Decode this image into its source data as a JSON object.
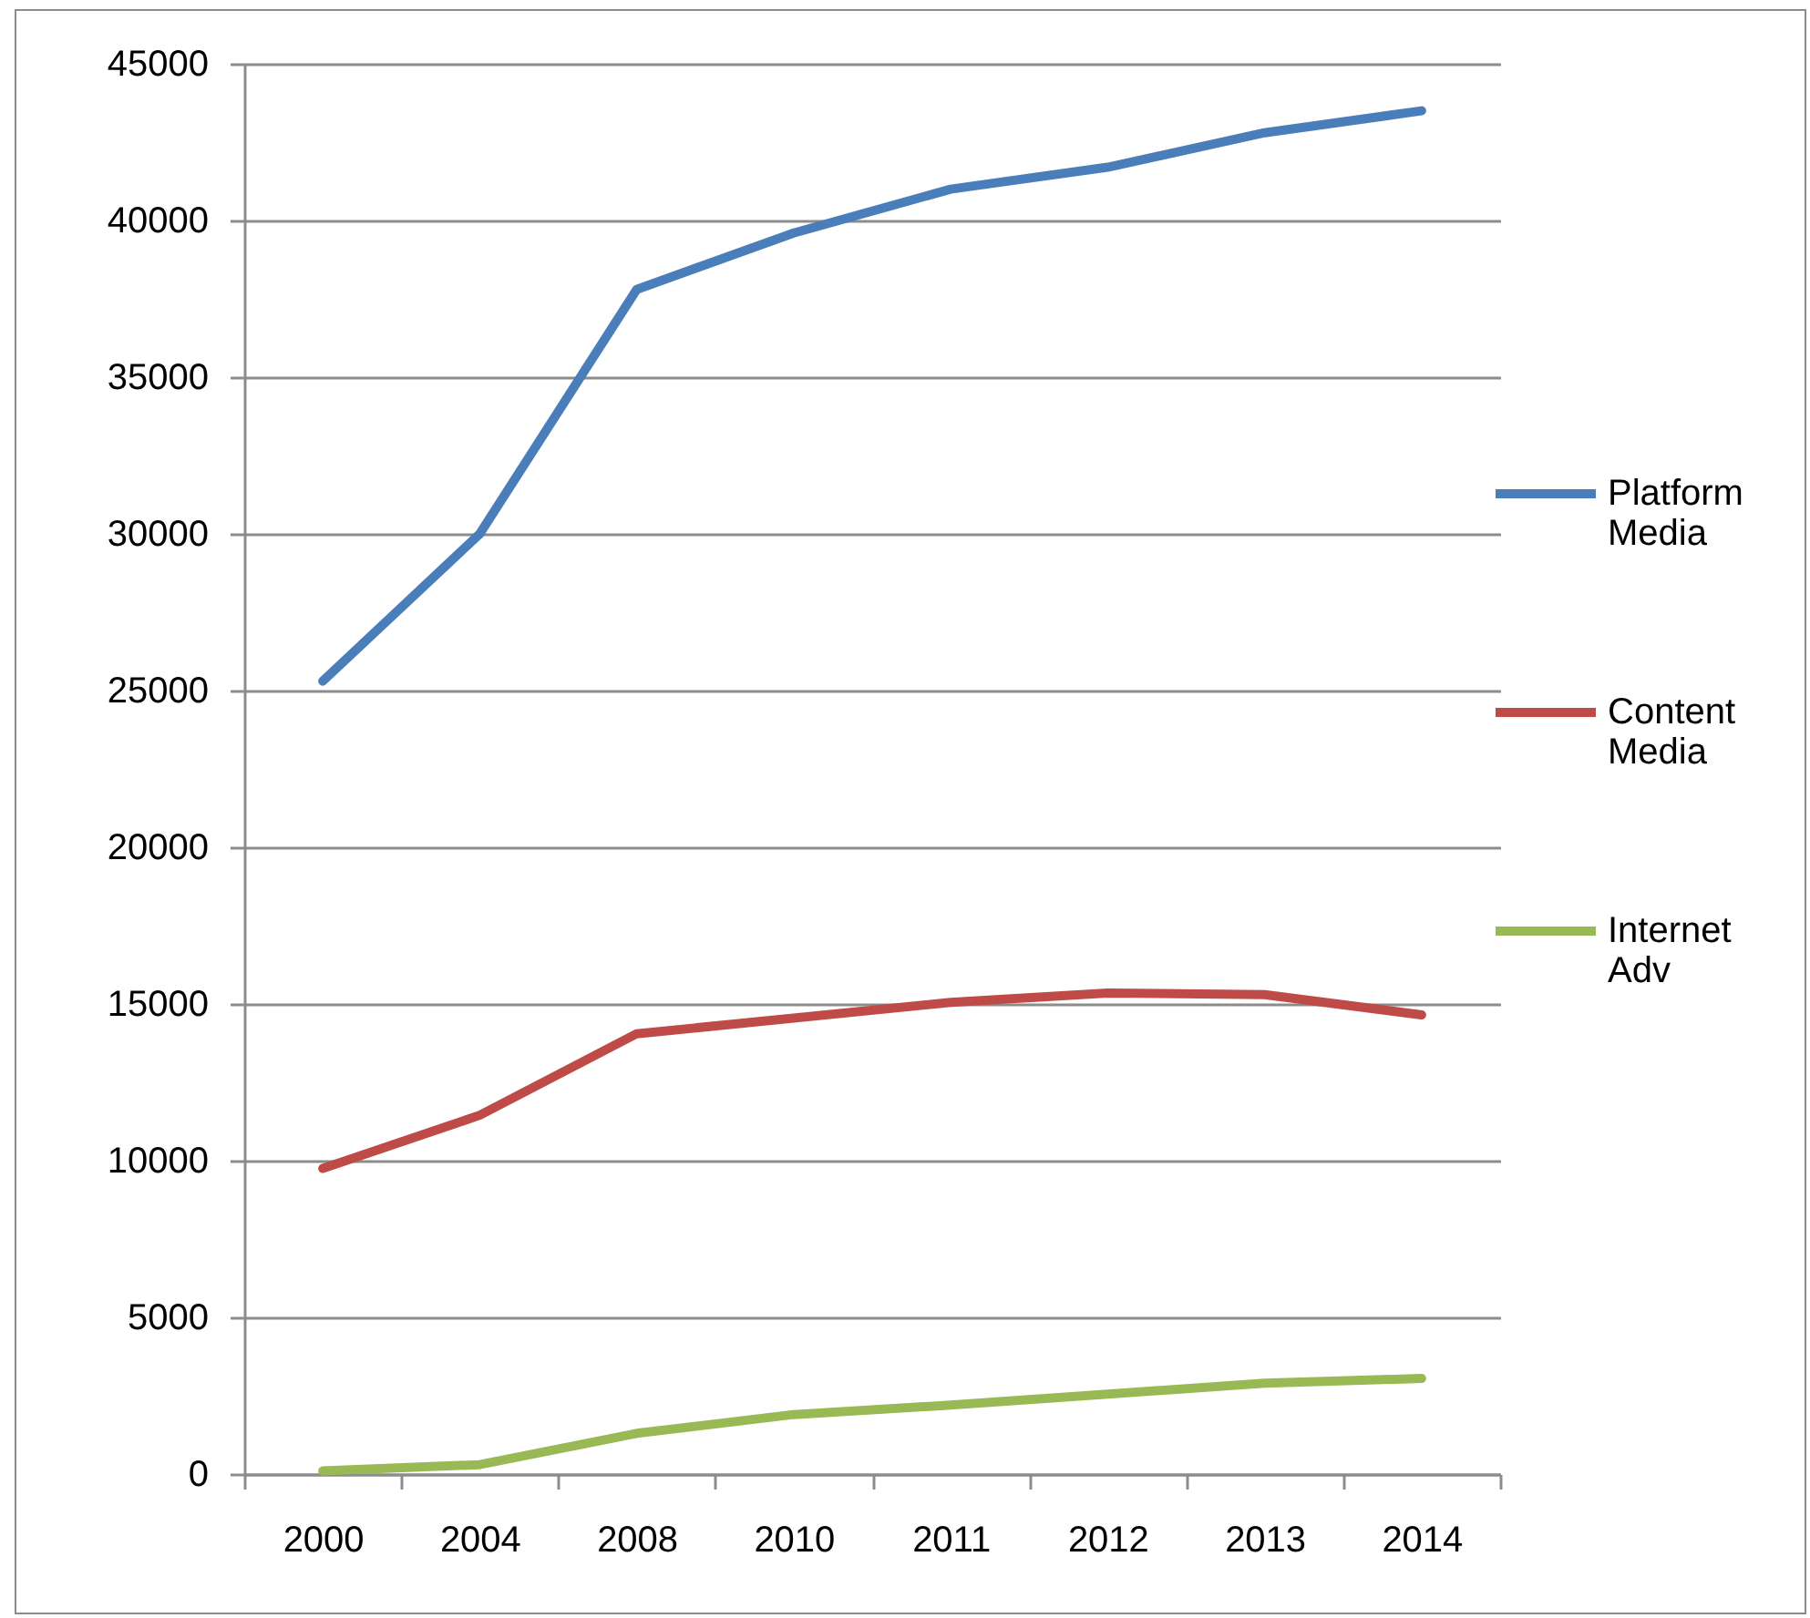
{
  "chart_data": {
    "type": "line",
    "categories": [
      "2000",
      "2004",
      "2008",
      "2010",
      "2011",
      "2012",
      "2013",
      "2014"
    ],
    "series": [
      {
        "name": "Platform Media",
        "color": "#4a7ebb",
        "values": [
          25300,
          30000,
          37800,
          39600,
          41000,
          41700,
          42800,
          43500
        ]
      },
      {
        "name": "Content Media",
        "color": "#be4b48",
        "values": [
          9750,
          11450,
          14050,
          14550,
          15050,
          15350,
          15300,
          14650
        ]
      },
      {
        "name": "Internet Adv",
        "color": "#98b954",
        "values": [
          100,
          300,
          1300,
          1900,
          2200,
          2550,
          2900,
          3050
        ]
      }
    ],
    "ylim": [
      0,
      45000
    ],
    "yticks": [
      0,
      5000,
      10000,
      15000,
      20000,
      25000,
      30000,
      35000,
      40000,
      45000
    ],
    "grid": "y",
    "legend": "right"
  }
}
